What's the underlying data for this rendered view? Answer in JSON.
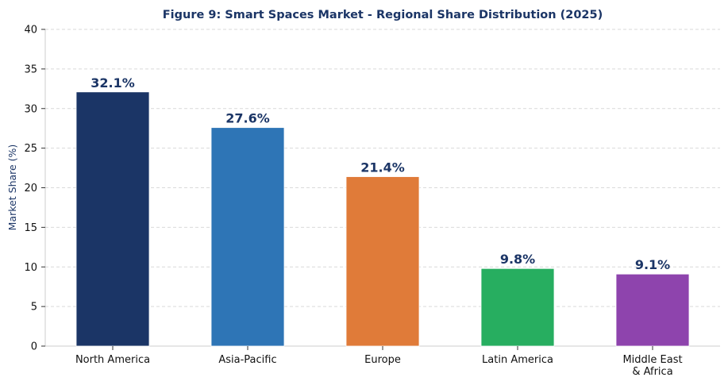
{
  "chart_data": {
    "type": "bar",
    "title": "Figure 9: Smart Spaces Market - Regional Share Distribution (2025)",
    "xlabel": "",
    "ylabel": "Market Share (%)",
    "ylim": [
      0,
      40
    ],
    "yticks": [
      0,
      5,
      10,
      15,
      20,
      25,
      30,
      35,
      40
    ],
    "grid": true,
    "categories": [
      "North America",
      "Asia-Pacific",
      "Europe",
      "Latin America",
      "Middle East\n& Africa"
    ],
    "values": [
      32.1,
      27.6,
      21.4,
      9.8,
      9.1
    ],
    "data_labels": [
      "32.1%",
      "27.6%",
      "21.4%",
      "9.8%",
      "9.1%"
    ],
    "colors": [
      "#1b3566",
      "#2e75b6",
      "#e07b39",
      "#27ae60",
      "#8e44ad"
    ],
    "label_color": "#1b3566"
  }
}
